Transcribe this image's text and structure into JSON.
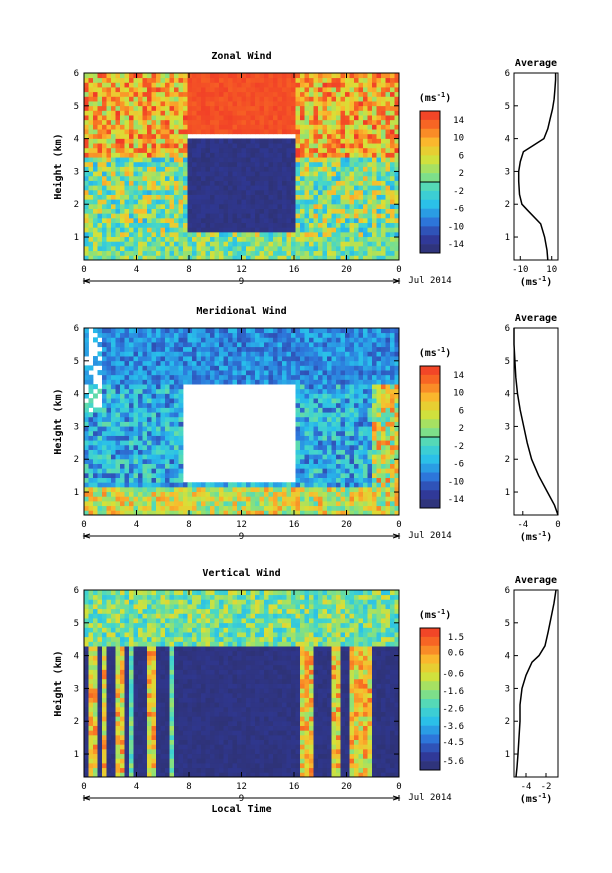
{
  "figure": {
    "date_label": "Jul 2014",
    "day_label": "9",
    "x_title": "Local Time",
    "height_label": "Height (km)",
    "average_title": "Average",
    "cbar_unit": "(ms",
    "unit_exp": "-1",
    "unit_close": ")"
  },
  "chart_data": [
    {
      "type": "heatmap",
      "title": "Zonal Wind",
      "xlabel": "Local Time",
      "ylabel": "Height (km)",
      "xlim": [
        0,
        24
      ],
      "ylim": [
        0.3,
        6
      ],
      "xticks": [
        "0",
        "4",
        "8",
        "12",
        "16",
        "20",
        "0"
      ],
      "yticks": [
        "1",
        "2",
        "3",
        "4",
        "5",
        "6"
      ],
      "colorbar": {
        "unit": "(ms-1)",
        "ticks": [
          "14",
          "10",
          "6",
          "2",
          "-2",
          "-6",
          "-10",
          "-14"
        ],
        "range": [
          -16,
          16
        ]
      },
      "average_profile": {
        "xlabel": "(ms-1)",
        "xticks": [
          "-10",
          "10"
        ],
        "xlim": [
          -14,
          14
        ],
        "height": [
          0.3,
          0.6,
          1.0,
          1.4,
          1.8,
          2.0,
          2.3,
          2.7,
          3.0,
          3.3,
          3.6,
          3.8,
          4.0,
          4.3,
          4.6,
          4.9,
          5.2,
          5.5,
          5.8,
          6.0
        ],
        "value": [
          7.5,
          7.0,
          5.5,
          3.0,
          -5.0,
          -9.0,
          -10.5,
          -11.0,
          -11.0,
          -10.0,
          -8.0,
          -1.5,
          5.0,
          7.5,
          9.0,
          10.5,
          11.5,
          12.0,
          12.5,
          12.5
        ]
      }
    },
    {
      "type": "heatmap",
      "title": "Meridional Wind",
      "xlabel": "Local Time",
      "ylabel": "Height (km)",
      "xlim": [
        0,
        24
      ],
      "ylim": [
        0.3,
        6
      ],
      "xticks": [
        "0",
        "4",
        "8",
        "12",
        "16",
        "20",
        "0"
      ],
      "yticks": [
        "1",
        "2",
        "3",
        "4",
        "5",
        "6"
      ],
      "colorbar": {
        "unit": "(ms-1)",
        "ticks": [
          "14",
          "10",
          "6",
          "2",
          "-2",
          "-6",
          "-10",
          "-14"
        ],
        "range": [
          -16,
          16
        ]
      },
      "average_profile": {
        "xlabel": "(ms-1)",
        "xticks": [
          "-4",
          "0"
        ],
        "xlim": [
          -5,
          0
        ],
        "height": [
          0.3,
          0.6,
          1.0,
          1.5,
          2.0,
          2.5,
          3.0,
          3.5,
          4.0,
          4.5,
          5.0,
          5.5,
          6.0
        ],
        "value": [
          0.0,
          -0.4,
          -1.2,
          -2.2,
          -3.0,
          -3.5,
          -3.9,
          -4.3,
          -4.6,
          -4.8,
          -4.9,
          -5.0,
          -5.0
        ]
      }
    },
    {
      "type": "heatmap",
      "title": "Vertical Wind",
      "xlabel": "Local Time",
      "ylabel": "Height (km)",
      "xlim": [
        0,
        24
      ],
      "ylim": [
        0.3,
        6
      ],
      "xticks": [
        "0",
        "4",
        "8",
        "12",
        "16",
        "20",
        "0"
      ],
      "yticks": [
        "1",
        "2",
        "3",
        "4",
        "5",
        "6"
      ],
      "colorbar": {
        "unit": "(ms-1)",
        "ticks": [
          "1.5",
          "0.6",
          "-0.6",
          "-1.6",
          "-2.6",
          "-3.6",
          "-4.5",
          "-5.6"
        ],
        "range": [
          -6.1,
          2.0
        ]
      },
      "average_profile": {
        "xlabel": "(ms-1)",
        "xticks": [
          "-4",
          "-2"
        ],
        "xlim": [
          -5.2,
          -0.8
        ],
        "height": [
          0.3,
          0.6,
          1.0,
          1.5,
          2.0,
          2.5,
          3.0,
          3.4,
          3.8,
          4.0,
          4.3,
          4.7,
          5.0,
          5.3,
          5.6,
          5.9,
          6.0
        ],
        "value": [
          -5.0,
          -4.9,
          -4.8,
          -4.7,
          -4.6,
          -4.6,
          -4.4,
          -4.0,
          -3.4,
          -2.7,
          -2.1,
          -1.8,
          -1.6,
          -1.4,
          -1.2,
          -1.05,
          -1.0
        ]
      }
    }
  ]
}
